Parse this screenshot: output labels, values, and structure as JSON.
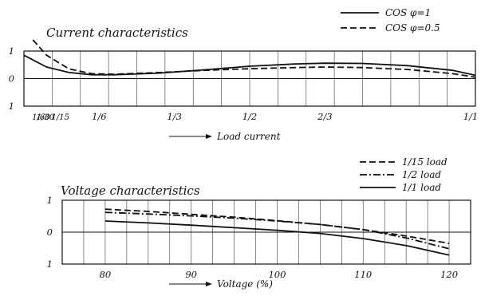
{
  "chart_data": [
    {
      "type": "line",
      "title": "Current characteristics",
      "xlabel": "Load current",
      "x_ticks": [
        {
          "value": 0.0167,
          "label": "1/60"
        },
        {
          "value": 0.0333,
          "label": "1/30"
        },
        {
          "value": 0.0667,
          "label": "1/15"
        },
        {
          "value": 0.1667,
          "label": "1/6"
        },
        {
          "value": 0.3333,
          "label": "1/3"
        },
        {
          "value": 0.5,
          "label": "1/2"
        },
        {
          "value": 0.6667,
          "label": "2/3"
        },
        {
          "value": 1.0,
          "label": "1/1"
        }
      ],
      "y_ticks": [
        {
          "value": 1,
          "label": "1"
        },
        {
          "value": 0,
          "label": "0"
        },
        {
          "value": -1,
          "label": "1"
        }
      ],
      "xlim": [
        0.0,
        1.0
      ],
      "ylim": [
        -1,
        1
      ],
      "grid": true,
      "legend_position": "top-right",
      "series": [
        {
          "name": "COS φ=1",
          "style": "solid",
          "x": [
            0.0,
            0.05,
            0.1,
            0.15,
            0.2,
            0.3,
            0.4,
            0.5,
            0.6,
            0.667,
            0.75,
            0.85,
            0.95,
            1.0
          ],
          "y": [
            0.85,
            0.42,
            0.22,
            0.14,
            0.14,
            0.2,
            0.32,
            0.45,
            0.53,
            0.56,
            0.55,
            0.47,
            0.3,
            0.12
          ]
        },
        {
          "name": "COS φ=0.5",
          "style": "dashed",
          "x": [
            0.02,
            0.05,
            0.1,
            0.15,
            0.2,
            0.3,
            0.4,
            0.5,
            0.6,
            0.667,
            0.75,
            0.85,
            0.95,
            1.0
          ],
          "y": [
            1.45,
            0.85,
            0.35,
            0.18,
            0.16,
            0.22,
            0.3,
            0.36,
            0.4,
            0.42,
            0.4,
            0.33,
            0.18,
            0.05
          ]
        }
      ]
    },
    {
      "type": "line",
      "title": "Voltage characteristics",
      "xlabel": "Voltage (%)",
      "x_ticks": [
        {
          "value": 80,
          "label": "80"
        },
        {
          "value": 90,
          "label": "90"
        },
        {
          "value": 100,
          "label": "100"
        },
        {
          "value": 110,
          "label": "110"
        },
        {
          "value": 120,
          "label": "120"
        }
      ],
      "y_ticks": [
        {
          "value": 1,
          "label": "1"
        },
        {
          "value": 0,
          "label": "0"
        },
        {
          "value": -1,
          "label": "1"
        }
      ],
      "xlim": [
        75,
        122.5
      ],
      "ylim": [
        -1,
        1
      ],
      "grid": true,
      "legend_position": "top-right",
      "series": [
        {
          "name": "1/15 load",
          "style": "dashed",
          "x": [
            80,
            85,
            90,
            95,
            100,
            105,
            110,
            115,
            120
          ],
          "y": [
            0.72,
            0.65,
            0.56,
            0.47,
            0.36,
            0.24,
            0.08,
            -0.12,
            -0.35
          ]
        },
        {
          "name": "1/2 load",
          "style": "dashdot",
          "x": [
            80,
            85,
            90,
            95,
            100,
            105,
            110,
            115,
            120
          ],
          "y": [
            0.62,
            0.57,
            0.51,
            0.44,
            0.35,
            0.24,
            0.08,
            -0.18,
            -0.52
          ]
        },
        {
          "name": "1/1 load",
          "style": "solid",
          "x": [
            80,
            85,
            90,
            95,
            100,
            105,
            110,
            115,
            120
          ],
          "y": [
            0.35,
            0.29,
            0.22,
            0.14,
            0.06,
            -0.04,
            -0.2,
            -0.42,
            -0.72
          ]
        }
      ]
    }
  ]
}
